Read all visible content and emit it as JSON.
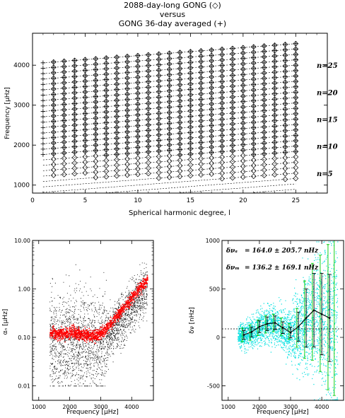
{
  "figure": {
    "title_lines": [
      "2088-day-long GONG (◇)",
      "versus",
      "GONG 36-day averaged (+)"
    ]
  },
  "chart_data": [
    {
      "type": "scatter",
      "panel": "echelle",
      "xlabel": "Spherical harmonic degree, l",
      "ylabel": "Frequency [μHz]",
      "xlim": [
        0,
        28
      ],
      "ylim": [
        800,
        4800
      ],
      "xticks": [
        0,
        5,
        10,
        15,
        20,
        25
      ],
      "yticks": [
        1000,
        2000,
        3000,
        4000
      ],
      "ridge_labels": [
        "n=25",
        "n=20",
        "n=15",
        "n=10",
        "n=5"
      ],
      "ridge_orders": [
        25,
        20,
        15,
        10,
        5
      ],
      "ridges": {
        "n_range": [
          2,
          29
        ],
        "base_freq_l0_n5": 800,
        "spacing_uHz": 135,
        "slope_per_l_uHz": 20,
        "l_range": [
          1,
          25
        ]
      },
      "series": [
        {
          "name": "2088-day-long GONG",
          "marker": "diamond",
          "l_min": 2,
          "l_max": 25,
          "f_min": 1200,
          "f_max": 4600
        },
        {
          "name": "GONG 36-day averaged",
          "marker": "plus",
          "l_min": 1,
          "l_max": 25,
          "f_min": 1750,
          "f_max": 4750
        }
      ]
    },
    {
      "type": "scatter",
      "panel": "linewidth",
      "xlabel": "Frequency [μHz]",
      "ylabel": "αₙ [μHz]",
      "y_scale": "log",
      "xlim": [
        800,
        4700
      ],
      "ylim": [
        0.005,
        10
      ],
      "xticks": [
        1000,
        2000,
        3000,
        4000
      ],
      "yticks": [
        0.01,
        0.1,
        1.0,
        10.0
      ],
      "ytick_labels": [
        "0.01",
        "0.10",
        "1.00",
        "10.00"
      ],
      "series": [
        {
          "name": "",
          "color": "#000000",
          "x_range": [
            1350,
            4500
          ],
          "y_range": [
            0.01,
            4.0
          ]
        },
        {
          "name": "",
          "color": "#ff0000",
          "x": [
            1350,
            1500,
            1800,
            2100,
            2400,
            2700,
            3000,
            3300,
            3600,
            3900,
            4200,
            4500
          ],
          "y": [
            0.13,
            0.12,
            0.12,
            0.13,
            0.115,
            0.11,
            0.12,
            0.19,
            0.33,
            0.55,
            0.95,
            1.6
          ]
        }
      ]
    },
    {
      "type": "line",
      "panel": "difference",
      "xlabel": "Frequency [μHz]",
      "ylabel": "δν [nHz]",
      "xlim": [
        800,
        4700
      ],
      "ylim": [
        -650,
        1000
      ],
      "xticks": [
        1000,
        2000,
        3000,
        4000
      ],
      "yticks": [
        -500,
        0,
        500,
        1000
      ],
      "annotations": [
        {
          "symbol": "δνₐ",
          "text": "= 164.0 ± 205.7 nHz"
        },
        {
          "symbol": "δνₘ",
          "text": "= 136.2 ± 169.1 nHz"
        }
      ],
      "cloud": {
        "color": "#00e0e0",
        "x_range": [
          1300,
          4500
        ]
      },
      "series": [
        {
          "name": "",
          "color": "#000000",
          "x": [
            1500,
            1750,
            2000,
            2250,
            2500,
            2750,
            3000,
            3250,
            3500,
            3750,
            4000,
            4250
          ],
          "y": [
            25,
            55,
            110,
            140,
            150,
            100,
            50,
            110,
            200,
            280,
            240,
            200
          ],
          "err": [
            45,
            50,
            60,
            70,
            70,
            60,
            55,
            150,
            300,
            380,
            420,
            450
          ]
        },
        {
          "name": "",
          "color": "#00cc00",
          "x": [
            1450,
            1700,
            1950,
            2200,
            2450,
            2700,
            2950,
            3200,
            3450,
            3700,
            3950,
            4200,
            4400
          ],
          "err": [
            70,
            80,
            80,
            90,
            90,
            90,
            80,
            200,
            400,
            500,
            600,
            750,
            800
          ]
        }
      ]
    }
  ]
}
